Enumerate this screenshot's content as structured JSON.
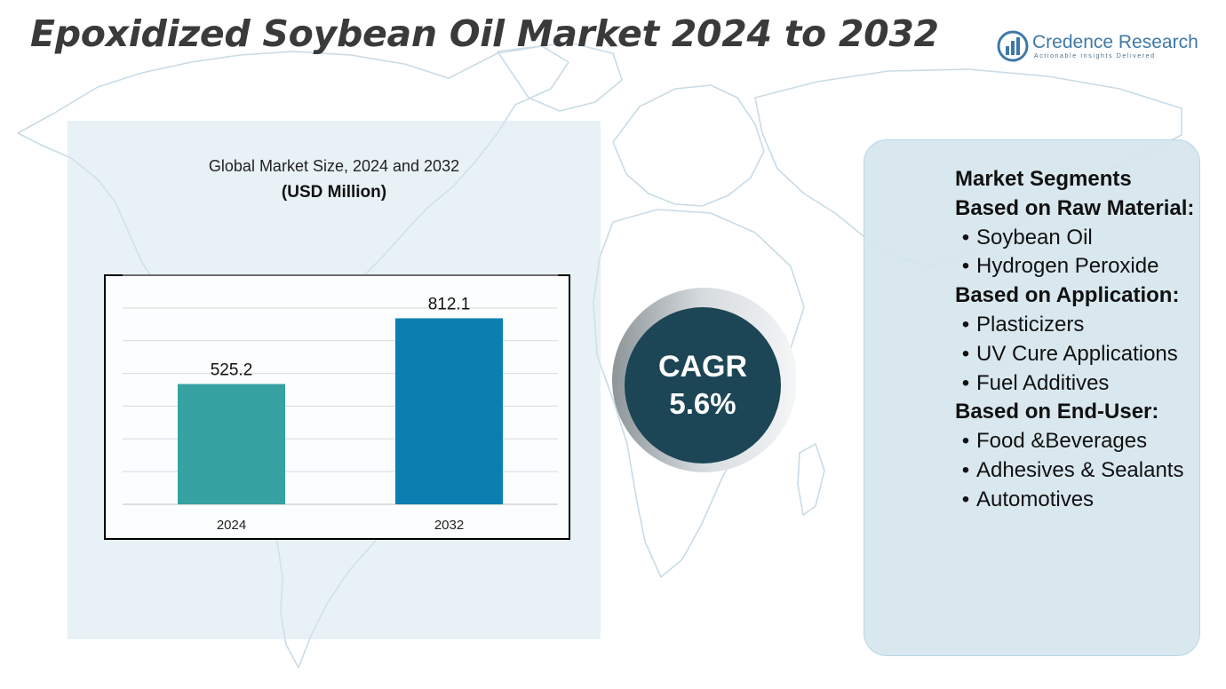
{
  "title": "Epoxidized Soybean Oil Market 2024 to 2032",
  "logo": {
    "name": "Credence Research",
    "tagline": "Actionable Insights Delivered",
    "icon": "bar-chart-logo-icon"
  },
  "chart_data": {
    "type": "bar",
    "title": "Global Market Size, 2024 and 2032",
    "subtitle": "(USD Million)",
    "categories": [
      "2024",
      "2032"
    ],
    "values": [
      525.2,
      812.1
    ],
    "data_labels": [
      "525.2",
      "812.1"
    ],
    "colors": [
      "#36a2a1",
      "#0b7fb0"
    ],
    "ylim": [
      0,
      1000
    ],
    "grid": true,
    "xlabel": "",
    "ylabel": ""
  },
  "cagr": {
    "label": "CAGR",
    "value": "5.6%"
  },
  "segments": {
    "heading": "Market Segments",
    "groups": [
      {
        "title": "Based on Raw Material:",
        "items": [
          "Soybean Oil",
          "Hydrogen Peroxide"
        ]
      },
      {
        "title": "Based on Application:",
        "items": [
          "Plasticizers",
          "UV Cure Applications",
          "Fuel Additives"
        ]
      },
      {
        "title": "Based on End-User:",
        "items": [
          "Food &Beverages",
          "Adhesives & Sealants",
          "Automotives"
        ]
      }
    ]
  },
  "colors": {
    "title": "#3a3a3a",
    "cagr_circle": "#1c4555",
    "panel_bg": "#d6e6ee",
    "logo": "#3f78a8"
  }
}
